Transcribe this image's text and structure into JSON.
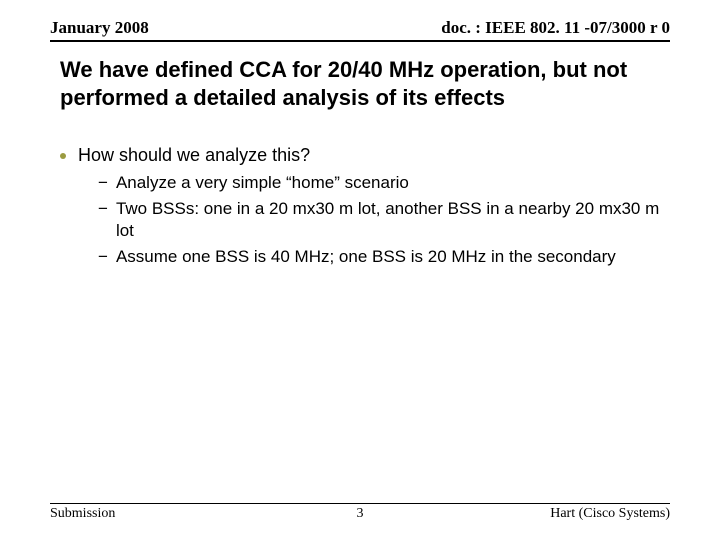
{
  "header": {
    "date": "January 2008",
    "docref": "doc. : IEEE 802. 11 -07/3000 r 0"
  },
  "title": "We have defined CCA for 20/40 MHz operation, but not performed a detailed analysis of its effects",
  "bullets": {
    "main": "How should we analyze this?",
    "sub1": "Analyze a very simple “home” scenario",
    "sub2": "Two BSSs: one in a 20 mx30 m lot, another BSS in a nearby 20 mx30 m lot",
    "sub3": "Assume one BSS is 40 MHz; one BSS is 20 MHz in the secondary"
  },
  "footer": {
    "left": "Submission",
    "page": "3",
    "right": "Hart (Cisco Systems)"
  },
  "colors": {
    "bullet_dot": "#9b9b40",
    "text": "#000000",
    "rule": "#000000",
    "background": "#ffffff"
  }
}
